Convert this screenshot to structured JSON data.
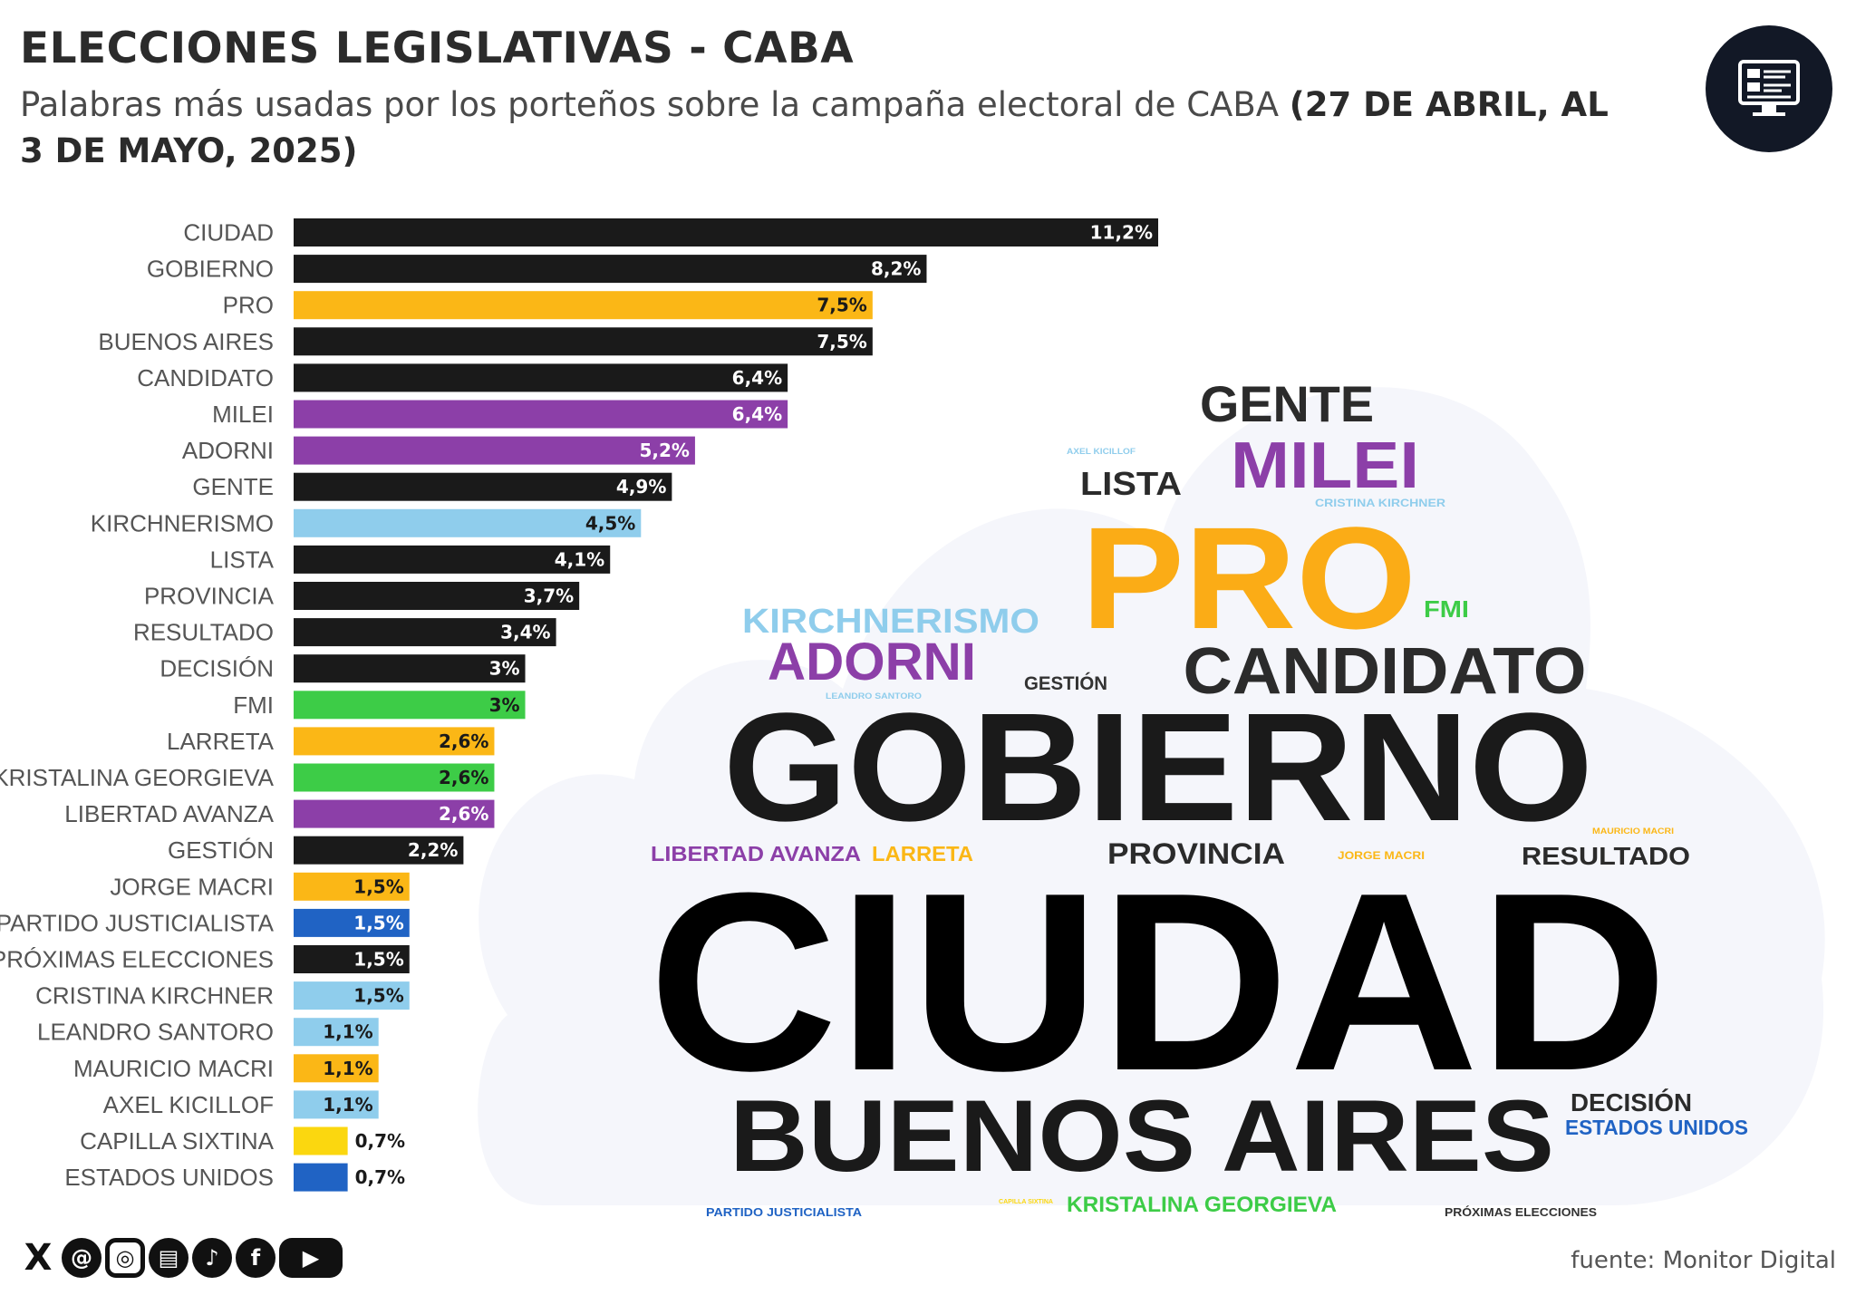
{
  "header": {
    "title": "ELECCIONES LEGISLATIVAS - CABA",
    "subtitle_text": "Palabras más usadas por los porteños sobre la campaña electoral de CABA ",
    "subtitle_bold": "(27 DE ABRIL, AL 3 DE MAYO, 2025)"
  },
  "logo": {
    "icon": "monitor-dashboard-icon",
    "background": "#121826"
  },
  "colors": {
    "black": "#1a1a1a",
    "yellow": "#fbb716",
    "purple": "#8c3fa8",
    "light_blue": "#8fcdec",
    "green": "#3dcc47",
    "blue": "#2063c4",
    "bright_yellow": "#fbd70f",
    "cloud": "#f5f6fb"
  },
  "chart_data": [
    {
      "type": "bar",
      "orientation": "horizontal",
      "title": "",
      "xlabel": "",
      "ylabel": "",
      "xlim": [
        0,
        11.2
      ],
      "grid": false,
      "categories": [
        "CIUDAD",
        "GOBIERNO",
        "PRO",
        "BUENOS AIRES",
        "CANDIDATO",
        "MILEI",
        "ADORNI",
        "GENTE",
        "KIRCHNERISMO",
        "LISTA",
        "PROVINCIA",
        "RESULTADO",
        "DECISIÓN",
        "FMI",
        "LARRETA",
        "KRISTALINA GEORGIEVA",
        "LIBERTAD AVANZA",
        "GESTIÓN",
        "JORGE MACRI",
        "PARTIDO JUSTICIALISTA",
        "PRÓXIMAS ELECCIONES",
        "CRISTINA KIRCHNER",
        "LEANDRO SANTORO",
        "MAURICIO MACRI",
        "AXEL KICILLOF",
        "CAPILLA SIXTINA",
        "ESTADOS UNIDOS"
      ],
      "values": [
        11.2,
        8.2,
        7.5,
        7.5,
        6.4,
        6.4,
        5.2,
        4.9,
        4.5,
        4.1,
        3.7,
        3.4,
        3,
        3,
        2.6,
        2.6,
        2.6,
        2.2,
        1.5,
        1.5,
        1.5,
        1.5,
        1.1,
        1.1,
        1.1,
        0.7,
        0.7
      ],
      "value_labels": [
        "11,2%",
        "8,2%",
        "7,5%",
        "7,5%",
        "6,4%",
        "6,4%",
        "5,2%",
        "4,9%",
        "4,5%",
        "4,1%",
        "3,7%",
        "3,4%",
        "3%",
        "3%",
        "2,6%",
        "2,6%",
        "2,6%",
        "2,2%",
        "1,5%",
        "1,5%",
        "1,5%",
        "1,5%",
        "1,1%",
        "1,1%",
        "1,1%",
        "0,7%",
        "0,7%"
      ],
      "bar_colors": [
        "#1a1a1a",
        "#1a1a1a",
        "#fbb716",
        "#1a1a1a",
        "#1a1a1a",
        "#8c3fa8",
        "#8c3fa8",
        "#1a1a1a",
        "#8fcdec",
        "#1a1a1a",
        "#1a1a1a",
        "#1a1a1a",
        "#1a1a1a",
        "#3dcc47",
        "#fbb716",
        "#3dcc47",
        "#8c3fa8",
        "#1a1a1a",
        "#fbb716",
        "#2063c4",
        "#1a1a1a",
        "#8fcdec",
        "#8fcdec",
        "#fbb716",
        "#8fcdec",
        "#fbd70f",
        "#2063c4"
      ]
    },
    {
      "type": "wordcloud",
      "words": [
        {
          "text": "CIUDAD",
          "weight": 11.2,
          "color": "#000000"
        },
        {
          "text": "GOBIERNO",
          "weight": 8.2,
          "color": "#1a1a1a"
        },
        {
          "text": "PRO",
          "weight": 7.5,
          "color": "#fbac16"
        },
        {
          "text": "BUENOS AIRES",
          "weight": 7.5,
          "color": "#1a1a1a"
        },
        {
          "text": "CANDIDATO",
          "weight": 6.4,
          "color": "#2b2b2b"
        },
        {
          "text": "MILEI",
          "weight": 6.4,
          "color": "#8c3fa8"
        },
        {
          "text": "GENTE",
          "weight": 4.9,
          "color": "#2b2b2b"
        },
        {
          "text": "ADORNI",
          "weight": 5.2,
          "color": "#8c3fa8"
        },
        {
          "text": "KIRCHNERISMO",
          "weight": 4.5,
          "color": "#8fcdec"
        },
        {
          "text": "LISTA",
          "weight": 4.1,
          "color": "#2b2b2b"
        },
        {
          "text": "FMI",
          "weight": 3,
          "color": "#3dcc47"
        },
        {
          "text": "GESTIÓN",
          "weight": 2.2,
          "color": "#333333"
        },
        {
          "text": "PROVINCIA",
          "weight": 3.7,
          "color": "#2b2b2b"
        },
        {
          "text": "RESULTADO",
          "weight": 3.4,
          "color": "#2b2b2b"
        },
        {
          "text": "LIBERTAD AVANZA",
          "weight": 2.6,
          "color": "#8c3fa8"
        },
        {
          "text": "LARRETA",
          "weight": 2.6,
          "color": "#fbb716"
        },
        {
          "text": "DECISIÓN",
          "weight": 3,
          "color": "#2b2b2b"
        },
        {
          "text": "ESTADOS UNIDOS",
          "weight": 0.7,
          "color": "#2063c4"
        },
        {
          "text": "KRISTALINA GEORGIEVA",
          "weight": 2.6,
          "color": "#3dcc47"
        },
        {
          "text": "PARTIDO JUSTICIALISTA",
          "weight": 1.5,
          "color": "#2063c4"
        },
        {
          "text": "PRÓXIMAS ELECCIONES",
          "weight": 1.5,
          "color": "#333333"
        },
        {
          "text": "CRISTINA KIRCHNER",
          "weight": 1.5,
          "color": "#8fcdec"
        },
        {
          "text": "JORGE MACRI",
          "weight": 1.5,
          "color": "#fbb716"
        },
        {
          "text": "MAURICIO MACRI",
          "weight": 1.1,
          "color": "#fbb716"
        },
        {
          "text": "LEANDRO SANTORO",
          "weight": 1.1,
          "color": "#8fcdec"
        },
        {
          "text": "AXEL KICILLOF",
          "weight": 1.1,
          "color": "#8fcdec"
        },
        {
          "text": "CAPILLA SIXTINA",
          "weight": 0.7,
          "color": "#fbd70f"
        }
      ]
    }
  ],
  "socials": [
    {
      "name": "x-icon",
      "glyph": "X"
    },
    {
      "name": "threads-icon",
      "glyph": "@"
    },
    {
      "name": "instagram-icon",
      "glyph": "◎"
    },
    {
      "name": "newsletter-icon",
      "glyph": "▤"
    },
    {
      "name": "tiktok-icon",
      "glyph": "♪"
    },
    {
      "name": "facebook-icon",
      "glyph": "f"
    },
    {
      "name": "youtube-icon",
      "glyph": "▶"
    }
  ],
  "footer": {
    "source": "fuente: Monitor Digital"
  }
}
